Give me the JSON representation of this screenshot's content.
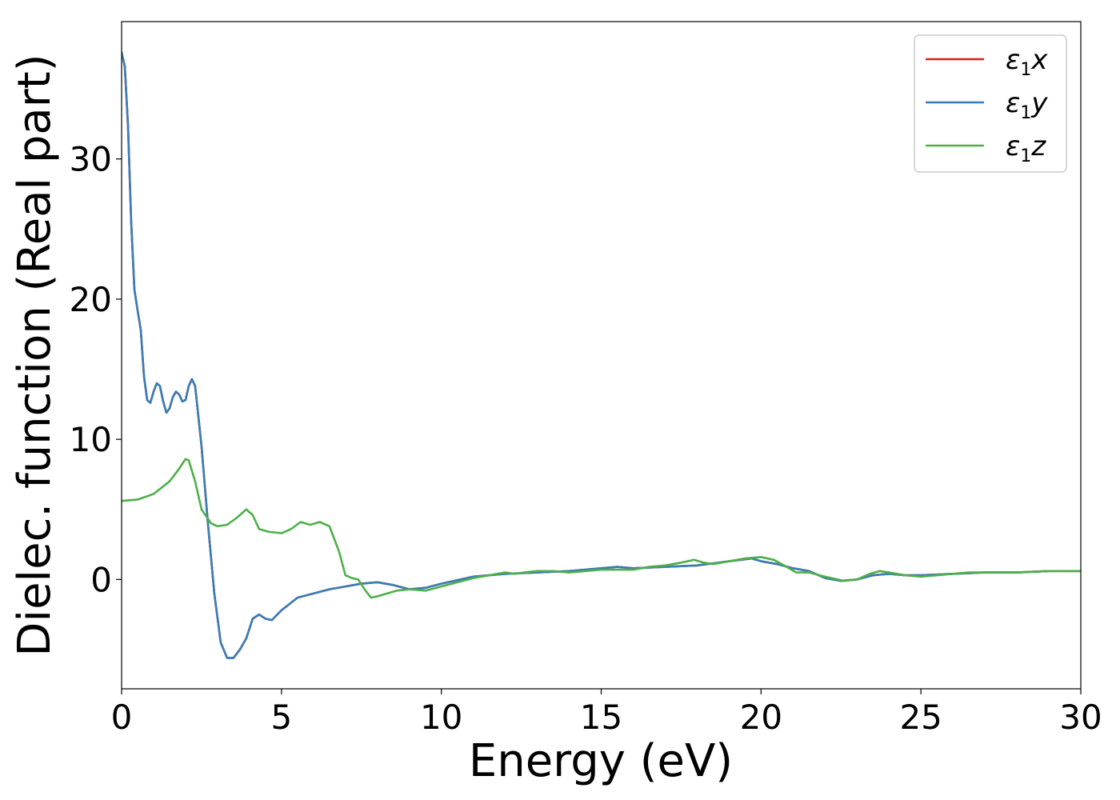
{
  "chart_data": {
    "type": "line",
    "title": "",
    "xlabel": "Energy (eV)",
    "ylabel": "Dielec. function (Real part)",
    "xlim": [
      0,
      30
    ],
    "ylim": [
      -7.8,
      39.8
    ],
    "xticks": [
      0,
      5,
      10,
      15,
      20,
      25,
      30
    ],
    "yticks": [
      0,
      10,
      20,
      30
    ],
    "grid": false,
    "legend_position": "top-right",
    "series": [
      {
        "name": "ε₁x",
        "legend": {
          "symbol": "ε",
          "sub": "1",
          "suffix": "x"
        },
        "color": "#e41a1c",
        "points": [
          [
            0,
            37.6
          ],
          [
            0.1,
            36.6
          ],
          [
            0.2,
            32.4
          ],
          [
            0.3,
            25.5
          ],
          [
            0.4,
            20.7
          ],
          [
            0.5,
            19.2
          ],
          [
            0.6,
            17.8
          ],
          [
            0.7,
            14.5
          ],
          [
            0.8,
            12.8
          ],
          [
            0.9,
            12.6
          ],
          [
            1.0,
            13.4
          ],
          [
            1.1,
            14.0
          ],
          [
            1.2,
            13.8
          ],
          [
            1.3,
            12.7
          ],
          [
            1.4,
            11.9
          ],
          [
            1.5,
            12.2
          ],
          [
            1.6,
            13.0
          ],
          [
            1.7,
            13.4
          ],
          [
            1.8,
            13.2
          ],
          [
            1.9,
            12.7
          ],
          [
            2.0,
            12.8
          ],
          [
            2.1,
            13.8
          ],
          [
            2.2,
            14.3
          ],
          [
            2.3,
            13.8
          ],
          [
            2.5,
            9.5
          ],
          [
            2.7,
            4.0
          ],
          [
            2.9,
            -1.0
          ],
          [
            3.1,
            -4.5
          ],
          [
            3.3,
            -5.6
          ],
          [
            3.5,
            -5.6
          ],
          [
            3.7,
            -5.0
          ],
          [
            3.9,
            -4.2
          ],
          [
            4.1,
            -2.8
          ],
          [
            4.3,
            -2.5
          ],
          [
            4.5,
            -2.8
          ],
          [
            4.7,
            -2.9
          ],
          [
            5.0,
            -2.2
          ],
          [
            5.5,
            -1.3
          ],
          [
            6.0,
            -1.0
          ],
          [
            6.5,
            -0.7
          ],
          [
            7.0,
            -0.5
          ],
          [
            7.5,
            -0.3
          ],
          [
            8.0,
            -0.2
          ],
          [
            8.5,
            -0.4
          ],
          [
            9.0,
            -0.7
          ],
          [
            9.5,
            -0.6
          ],
          [
            10.0,
            -0.3
          ],
          [
            11.0,
            0.2
          ],
          [
            12.0,
            0.4
          ],
          [
            13.0,
            0.5
          ],
          [
            14.0,
            0.6
          ],
          [
            15.0,
            0.8
          ],
          [
            15.5,
            0.9
          ],
          [
            16.0,
            0.8
          ],
          [
            17.0,
            0.9
          ],
          [
            18.0,
            1.0
          ],
          [
            19.0,
            1.3
          ],
          [
            19.7,
            1.5
          ],
          [
            20.0,
            1.3
          ],
          [
            20.5,
            1.1
          ],
          [
            21.0,
            0.8
          ],
          [
            21.5,
            0.6
          ],
          [
            22.0,
            0.1
          ],
          [
            22.5,
            -0.1
          ],
          [
            23.0,
            0.0
          ],
          [
            23.5,
            0.3
          ],
          [
            24.0,
            0.4
          ],
          [
            24.5,
            0.3
          ],
          [
            25.0,
            0.3
          ],
          [
            26.0,
            0.4
          ],
          [
            27.0,
            0.5
          ],
          [
            28.0,
            0.5
          ],
          [
            29.0,
            0.6
          ],
          [
            30.0,
            0.6
          ]
        ]
      },
      {
        "name": "ε₁y",
        "legend": {
          "symbol": "ε",
          "sub": "1",
          "suffix": "y"
        },
        "color": "#377eb8",
        "points": [
          [
            0,
            37.6
          ],
          [
            0.1,
            36.6
          ],
          [
            0.2,
            32.4
          ],
          [
            0.3,
            25.5
          ],
          [
            0.4,
            20.7
          ],
          [
            0.5,
            19.2
          ],
          [
            0.6,
            17.8
          ],
          [
            0.7,
            14.5
          ],
          [
            0.8,
            12.8
          ],
          [
            0.9,
            12.6
          ],
          [
            1.0,
            13.4
          ],
          [
            1.1,
            14.0
          ],
          [
            1.2,
            13.8
          ],
          [
            1.3,
            12.7
          ],
          [
            1.4,
            11.9
          ],
          [
            1.5,
            12.2
          ],
          [
            1.6,
            13.0
          ],
          [
            1.7,
            13.4
          ],
          [
            1.8,
            13.2
          ],
          [
            1.9,
            12.7
          ],
          [
            2.0,
            12.8
          ],
          [
            2.1,
            13.8
          ],
          [
            2.2,
            14.3
          ],
          [
            2.3,
            13.8
          ],
          [
            2.5,
            9.5
          ],
          [
            2.7,
            4.0
          ],
          [
            2.9,
            -1.0
          ],
          [
            3.1,
            -4.5
          ],
          [
            3.3,
            -5.6
          ],
          [
            3.5,
            -5.6
          ],
          [
            3.7,
            -5.0
          ],
          [
            3.9,
            -4.2
          ],
          [
            4.1,
            -2.8
          ],
          [
            4.3,
            -2.5
          ],
          [
            4.5,
            -2.8
          ],
          [
            4.7,
            -2.9
          ],
          [
            5.0,
            -2.2
          ],
          [
            5.5,
            -1.3
          ],
          [
            6.0,
            -1.0
          ],
          [
            6.5,
            -0.7
          ],
          [
            7.0,
            -0.5
          ],
          [
            7.5,
            -0.3
          ],
          [
            8.0,
            -0.2
          ],
          [
            8.5,
            -0.4
          ],
          [
            9.0,
            -0.7
          ],
          [
            9.5,
            -0.6
          ],
          [
            10.0,
            -0.3
          ],
          [
            11.0,
            0.2
          ],
          [
            12.0,
            0.4
          ],
          [
            13.0,
            0.5
          ],
          [
            14.0,
            0.6
          ],
          [
            15.0,
            0.8
          ],
          [
            15.5,
            0.9
          ],
          [
            16.0,
            0.8
          ],
          [
            17.0,
            0.9
          ],
          [
            18.0,
            1.0
          ],
          [
            19.0,
            1.3
          ],
          [
            19.7,
            1.5
          ],
          [
            20.0,
            1.3
          ],
          [
            20.5,
            1.1
          ],
          [
            21.0,
            0.8
          ],
          [
            21.5,
            0.6
          ],
          [
            22.0,
            0.1
          ],
          [
            22.5,
            -0.1
          ],
          [
            23.0,
            0.0
          ],
          [
            23.5,
            0.3
          ],
          [
            24.0,
            0.4
          ],
          [
            24.5,
            0.3
          ],
          [
            25.0,
            0.3
          ],
          [
            26.0,
            0.4
          ],
          [
            27.0,
            0.5
          ],
          [
            28.0,
            0.5
          ],
          [
            29.0,
            0.6
          ],
          [
            30.0,
            0.6
          ]
        ]
      },
      {
        "name": "ε₁z",
        "legend": {
          "symbol": "ε",
          "sub": "1",
          "suffix": "z"
        },
        "color": "#4daf4a",
        "points": [
          [
            0,
            5.6
          ],
          [
            0.5,
            5.7
          ],
          [
            1.0,
            6.1
          ],
          [
            1.5,
            7.0
          ],
          [
            1.8,
            7.9
          ],
          [
            2.0,
            8.6
          ],
          [
            2.1,
            8.5
          ],
          [
            2.3,
            7.0
          ],
          [
            2.5,
            5.0
          ],
          [
            2.8,
            4.0
          ],
          [
            3.0,
            3.8
          ],
          [
            3.3,
            3.9
          ],
          [
            3.6,
            4.4
          ],
          [
            3.9,
            5.0
          ],
          [
            4.1,
            4.6
          ],
          [
            4.3,
            3.6
          ],
          [
            4.6,
            3.4
          ],
          [
            5.0,
            3.3
          ],
          [
            5.3,
            3.6
          ],
          [
            5.6,
            4.1
          ],
          [
            5.9,
            3.9
          ],
          [
            6.2,
            4.1
          ],
          [
            6.5,
            3.8
          ],
          [
            6.8,
            2.0
          ],
          [
            7.0,
            0.3
          ],
          [
            7.2,
            0.1
          ],
          [
            7.4,
            0.0
          ],
          [
            7.6,
            -0.7
          ],
          [
            7.8,
            -1.3
          ],
          [
            8.0,
            -1.2
          ],
          [
            8.3,
            -1.0
          ],
          [
            8.6,
            -0.8
          ],
          [
            9.0,
            -0.7
          ],
          [
            9.5,
            -0.8
          ],
          [
            10.0,
            -0.5
          ],
          [
            10.5,
            -0.2
          ],
          [
            11.0,
            0.1
          ],
          [
            11.5,
            0.3
          ],
          [
            12.0,
            0.5
          ],
          [
            12.3,
            0.4
          ],
          [
            12.6,
            0.5
          ],
          [
            13.0,
            0.6
          ],
          [
            13.5,
            0.6
          ],
          [
            14.0,
            0.5
          ],
          [
            14.5,
            0.6
          ],
          [
            15.0,
            0.7
          ],
          [
            15.5,
            0.7
          ],
          [
            16.0,
            0.7
          ],
          [
            16.5,
            0.9
          ],
          [
            17.0,
            1.0
          ],
          [
            17.5,
            1.2
          ],
          [
            17.9,
            1.4
          ],
          [
            18.2,
            1.2
          ],
          [
            18.5,
            1.1
          ],
          [
            19.0,
            1.3
          ],
          [
            19.5,
            1.5
          ],
          [
            20.0,
            1.6
          ],
          [
            20.4,
            1.4
          ],
          [
            20.8,
            0.9
          ],
          [
            21.1,
            0.5
          ],
          [
            21.5,
            0.5
          ],
          [
            22.0,
            0.2
          ],
          [
            22.6,
            -0.1
          ],
          [
            23.0,
            0.0
          ],
          [
            23.4,
            0.4
          ],
          [
            23.7,
            0.6
          ],
          [
            24.0,
            0.5
          ],
          [
            24.5,
            0.3
          ],
          [
            25.0,
            0.2
          ],
          [
            25.5,
            0.3
          ],
          [
            26.0,
            0.4
          ],
          [
            26.5,
            0.5
          ],
          [
            27.0,
            0.5
          ],
          [
            28.0,
            0.5
          ],
          [
            29.0,
            0.6
          ],
          [
            30.0,
            0.6
          ]
        ]
      }
    ]
  }
}
